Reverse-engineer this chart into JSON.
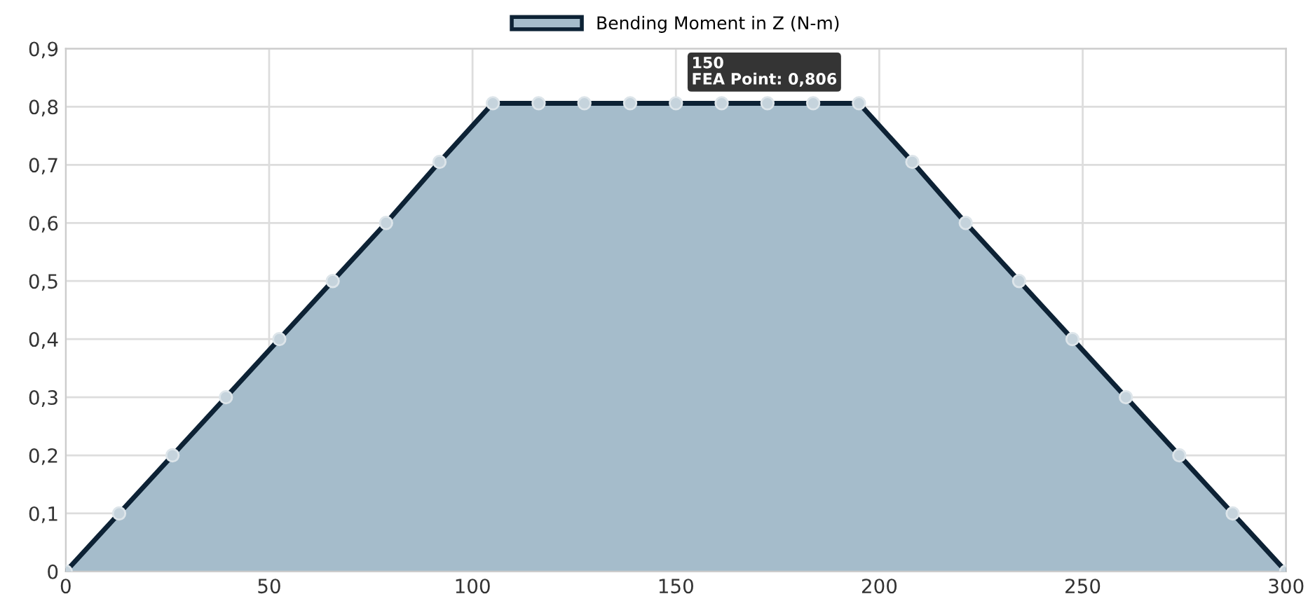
{
  "chart_data": {
    "type": "area",
    "x": [
      0,
      13.125,
      26.25,
      39.375,
      52.5,
      65.625,
      78.75,
      91.875,
      105,
      116.25,
      127.5,
      138.75,
      150,
      161.25,
      172.5,
      183.75,
      195,
      208.125,
      221.25,
      234.375,
      247.5,
      260.625,
      273.75,
      286.875,
      300
    ],
    "series": [
      {
        "name": "Bending Moment in Z (N-m)",
        "color": "#a5bccb",
        "values": [
          0,
          0.1,
          0.2,
          0.3,
          0.4,
          0.5,
          0.6,
          0.705,
          0.806,
          0.806,
          0.806,
          0.806,
          0.806,
          0.806,
          0.806,
          0.806,
          0.806,
          0.705,
          0.6,
          0.5,
          0.4,
          0.3,
          0.2,
          0.1,
          0
        ]
      }
    ],
    "xlim": [
      0,
      300
    ],
    "xticks": [
      0,
      50,
      100,
      150,
      200,
      250,
      300
    ],
    "ylim": [
      0,
      0.9
    ],
    "yticks": [
      0,
      {
        "value": 0.1,
        "label": "0,1"
      },
      {
        "value": 0.2,
        "label": "0,2"
      },
      {
        "value": 0.3,
        "label": "0,3"
      },
      {
        "value": 0.4,
        "label": "0,4"
      },
      {
        "value": 0.5,
        "label": "0,5"
      },
      {
        "value": 0.6,
        "label": "0,6"
      },
      {
        "value": 0.7,
        "label": "0,7"
      },
      {
        "value": 0.8,
        "label": "0,8"
      },
      {
        "value": 0.9,
        "label": "0,9"
      }
    ],
    "grid": true,
    "legend": "top",
    "marker": "circle",
    "line_style": "solid",
    "annotations": [
      {
        "text": "150\nFEA Point: 0,806",
        "x": 150,
        "y": 0.806
      }
    ]
  }
}
